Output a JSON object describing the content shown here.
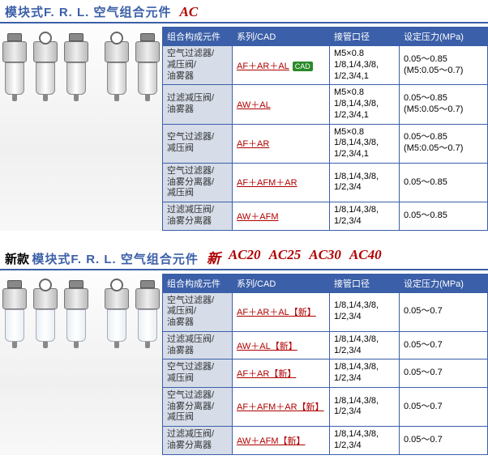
{
  "section1": {
    "title_main": "模块式F. R. L. 空气组合元件",
    "title_model": "AC",
    "headers": [
      "组合构成元件",
      "系列/CAD",
      "接管口径",
      "设定压力(MPa)"
    ],
    "rows": [
      {
        "comp": "空气过滤器/\n减压阀/\n油雾器",
        "series": "AF＋AR＋AL",
        "cad": "CAD",
        "port": "M5×0.8\n1/8,1/4,3/8,\n1/2,3/4,1",
        "pressure": "0.05～0.85\n(M5:0.05～0.7)"
      },
      {
        "comp": "过滤减压阀/\n油雾器",
        "series": "AW＋AL",
        "port": "M5×0.8\n1/8,1/4,3/8,\n1/2,3/4,1",
        "pressure": "0.05～0.85\n(M5:0.05～0.7)"
      },
      {
        "comp": "空气过滤器/\n减压阀",
        "series": "AF＋AR",
        "port": "M5×0.8\n1/8,1/4,3/8,\n1/2,3/4,1",
        "pressure": "0.05～0.85\n(M5:0.05～0.7)"
      },
      {
        "comp": "空气过滤器/\n油雾分离器/\n减压阀",
        "series": "AF＋AFM＋AR",
        "port": "1/8,1/4,3/8,\n1/2,3/4",
        "pressure": "0.05～0.85"
      },
      {
        "comp": "过滤减压阀/\n油雾分离器",
        "series": "AW＋AFM",
        "port": "1/8,1/4,3/8,\n1/2,3/4",
        "pressure": "0.05～0.85"
      }
    ]
  },
  "section2": {
    "title_prefix": "新款",
    "title_main": "模块式F. R. L. 空气组合元件",
    "title_new": "新",
    "title_models": [
      "AC20",
      "AC25",
      "AC30",
      "AC40"
    ],
    "headers": [
      "组合构成元件",
      "系列/CAD",
      "接管口径",
      "设定压力(MPa)"
    ],
    "new_label": "【新】",
    "rows": [
      {
        "comp": "空气过滤器/\n减压阀/\n油雾器",
        "series": "AF＋AR＋AL",
        "port": "1/8,1/4,3/8,\n1/2,3/4",
        "pressure": "0.05～0.7"
      },
      {
        "comp": "过滤减压阀/\n油雾器",
        "series": "AW＋AL",
        "port": "1/8,1/4,3/8,\n1/2,3/4",
        "pressure": "0.05～0.7"
      },
      {
        "comp": "空气过滤器/\n减压阀",
        "series": "AF＋AR",
        "port": "1/8,1/4,3/8,\n1/2,3/4",
        "pressure": "0.05～0.7"
      },
      {
        "comp": "空气过滤器/\n油雾分离器/\n减压阀",
        "series": "AF＋AFM＋AR",
        "port": "1/8,1/4,3/8,\n1/2,3/4",
        "pressure": "0.05～0.7"
      },
      {
        "comp": "过滤减压阀/\n油雾分离器",
        "series": "AW＋AFM",
        "port": "1/8,1/4,3/8,\n1/2,3/4",
        "pressure": "0.05～0.7"
      }
    ]
  }
}
